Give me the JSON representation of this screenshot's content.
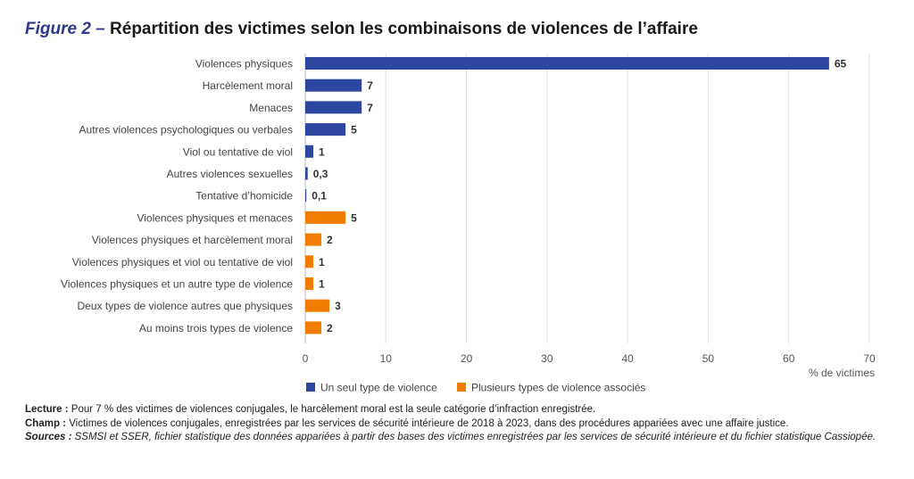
{
  "figure_label": "Figure 2 –",
  "title": "Répartition des victimes selon les combinaisons de violences de l’affaire",
  "chart_data": {
    "type": "bar",
    "orientation": "horizontal",
    "categories": [
      "Violences physiques",
      "Harcèlement moral",
      "Menaces",
      "Autres violences psychologiques ou verbales",
      "Viol ou tentative de viol",
      "Autres violences sexuelles",
      "Tentative d’homicide",
      "Violences physiques et menaces",
      "Violences physiques et harcèlement moral",
      "Violences physiques et viol ou tentative de viol",
      "Violences physiques et un autre type de violence",
      "Deux types de violence autres que physiques",
      "Au moins trois types de violence"
    ],
    "values": [
      65,
      7,
      7,
      5,
      1,
      0.3,
      0.1,
      5,
      2,
      1,
      1,
      3,
      2
    ],
    "value_labels": [
      "65",
      "7",
      "7",
      "5",
      "1",
      "0,3",
      "0,1",
      "5",
      "2",
      "1",
      "1",
      "3",
      "2"
    ],
    "series_index": [
      0,
      0,
      0,
      0,
      0,
      0,
      0,
      1,
      1,
      1,
      1,
      1,
      1
    ],
    "series": [
      {
        "name": "Un seul type de violence",
        "color": "#2d46a0"
      },
      {
        "name": "Plusieurs types de violence associés",
        "color": "#f07d00"
      }
    ],
    "xlabel": "% de victimes",
    "xlim": [
      0,
      70
    ],
    "xticks": [
      0,
      10,
      20,
      30,
      40,
      50,
      60,
      70
    ],
    "grid": true,
    "legend_position": "bottom"
  },
  "notes": {
    "lecture_label": "Lecture :",
    "lecture": " Pour 7 % des victimes de violences conjugales, le harcèlement moral est la seule catégorie d’infraction enregistrée.",
    "champ_label": "Champ :",
    "champ": " Victimes de violences conjugales, enregistrées par les services de sécurité intérieure de 2018 à 2023, dans des procédures appariées avec une affaire justice.",
    "sources_label": "Sources :",
    "sources": " SSMSI et SSER, fichier statistique des données appariées à partir des bases des victimes enregistrées par les services de sécurité intérieure et du fichier statistique Cassiopée."
  }
}
